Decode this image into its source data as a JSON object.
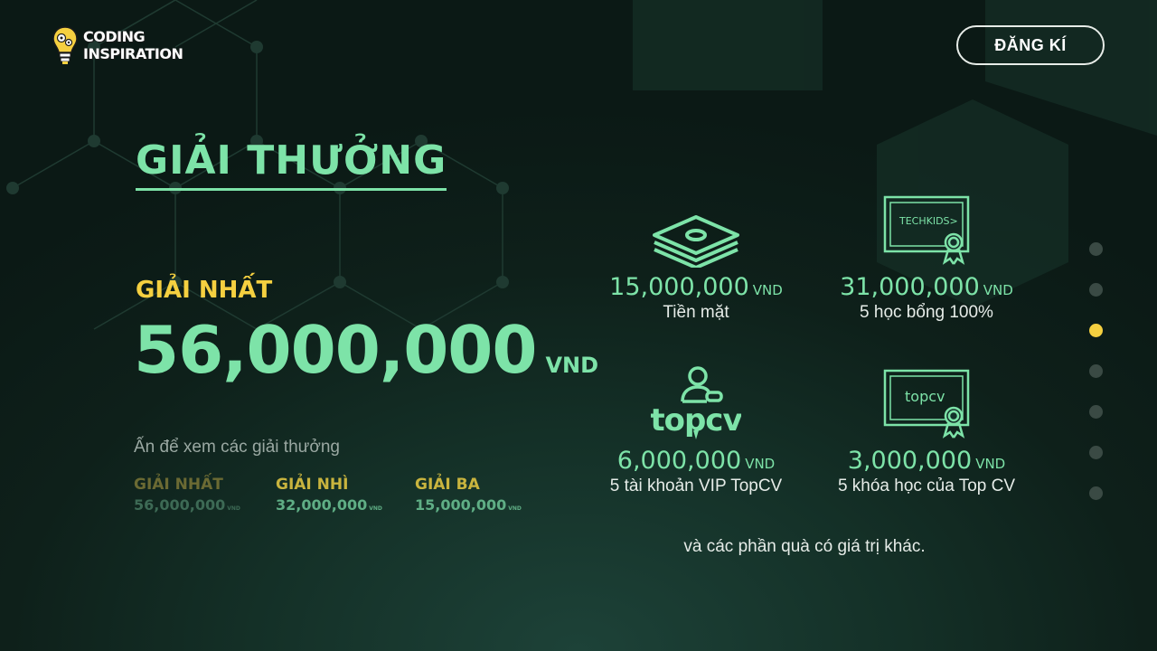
{
  "header": {
    "logo_line1": "CODING",
    "logo_line2": "INSPIRATION",
    "register_label": "ĐĂNG KÍ"
  },
  "main": {
    "title": "GIẢI THƯỞNG",
    "selected_label": "GIẢI NHẤT",
    "selected_amount": "56,000,000",
    "selected_currency": "VND",
    "hint": "Ấn để xem các giải thưởng",
    "tiers": [
      {
        "label": "GIẢI NHẤT",
        "amount": "56,000,000",
        "currency": "VND"
      },
      {
        "label": "GIẢI NHÌ",
        "amount": "32,000,000",
        "currency": "VND"
      },
      {
        "label": "GIẢI BA",
        "amount": "15,000,000",
        "currency": "VND"
      }
    ]
  },
  "prizes": [
    {
      "icon": "money-stack-icon",
      "amount": "15,000,000",
      "currency": "VND",
      "desc": "Tiền mặt"
    },
    {
      "icon": "techkids-certificate-icon",
      "logo_text": "TECHKIDS>",
      "amount": "31,000,000",
      "currency": "VND",
      "desc": "5 học bổng 100%"
    },
    {
      "icon": "topcv-logo-icon",
      "logo_text": "topcv",
      "amount": "6,000,000",
      "currency": "VND",
      "desc": "5 tài khoản VIP TopCV"
    },
    {
      "icon": "topcv-certificate-icon",
      "logo_text": "topcv",
      "amount": "3,000,000",
      "currency": "VND",
      "desc": "5 khóa học của Top CV"
    }
  ],
  "more_text": "và các phần quà có giá trị khác.",
  "nav_dots": {
    "count": 7,
    "active_index": 2
  },
  "colors": {
    "accent_green": "#7de3a8",
    "accent_yellow": "#f5d040",
    "background": "#0e201a"
  }
}
